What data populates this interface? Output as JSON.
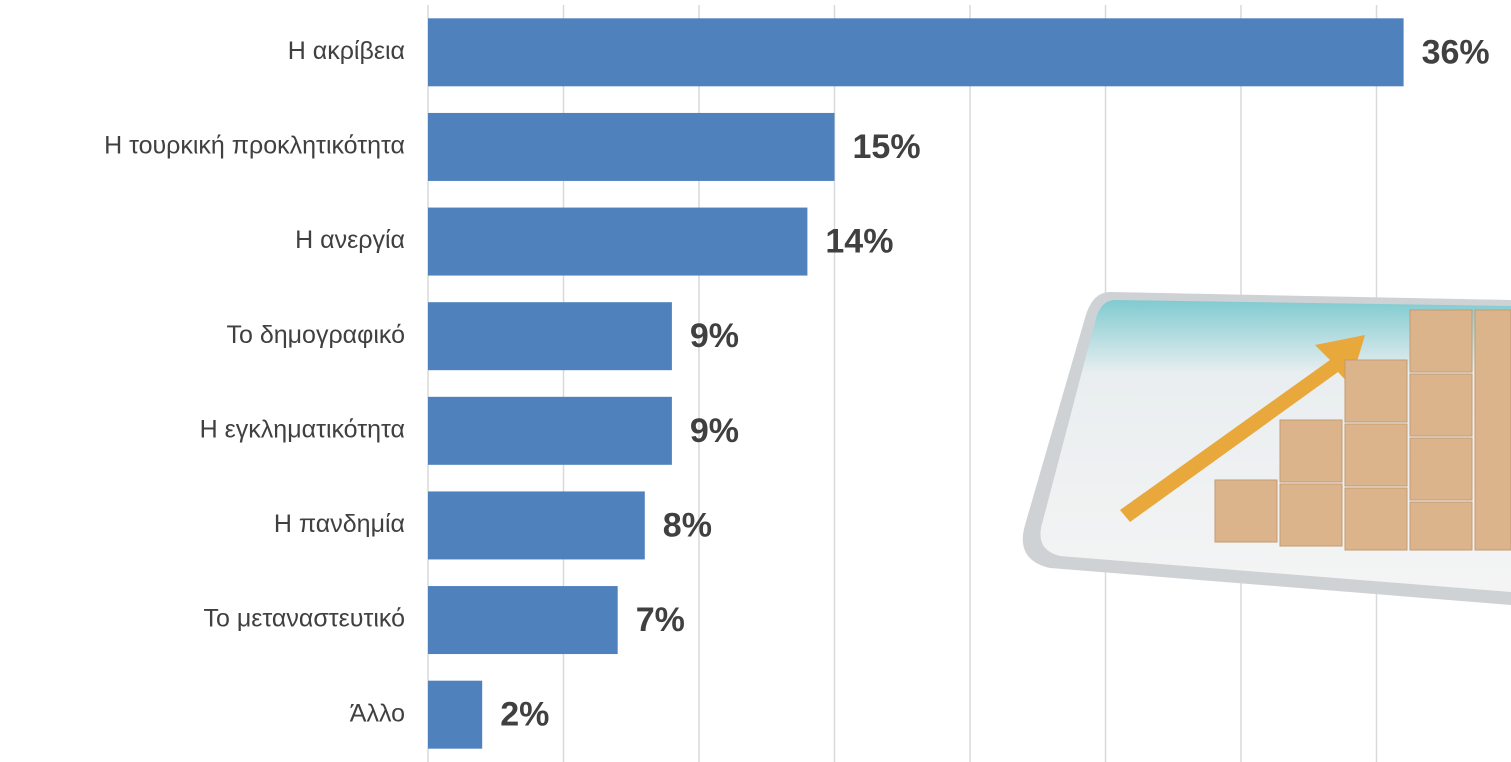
{
  "chart_data": {
    "type": "bar",
    "orientation": "horizontal",
    "categories": [
      "Η ακρίβεια",
      "Η τουρκική προκλητικότητα",
      "Η ανεργία",
      "Το δημογραφικό",
      "Η εγκληματικότητα",
      "Η πανδημία",
      "Το μεταναστευτικό",
      "Άλλο"
    ],
    "values": [
      36,
      15,
      14,
      9,
      9,
      8,
      7,
      2
    ],
    "value_labels": [
      "36%",
      "15%",
      "14%",
      "9%",
      "9%",
      "8%",
      "7%",
      "2%"
    ],
    "color": "#4f81bd",
    "xlim": [
      0,
      40
    ],
    "xticks": [
      0,
      5,
      10,
      15,
      20,
      25,
      30,
      35
    ],
    "grid": true
  }
}
